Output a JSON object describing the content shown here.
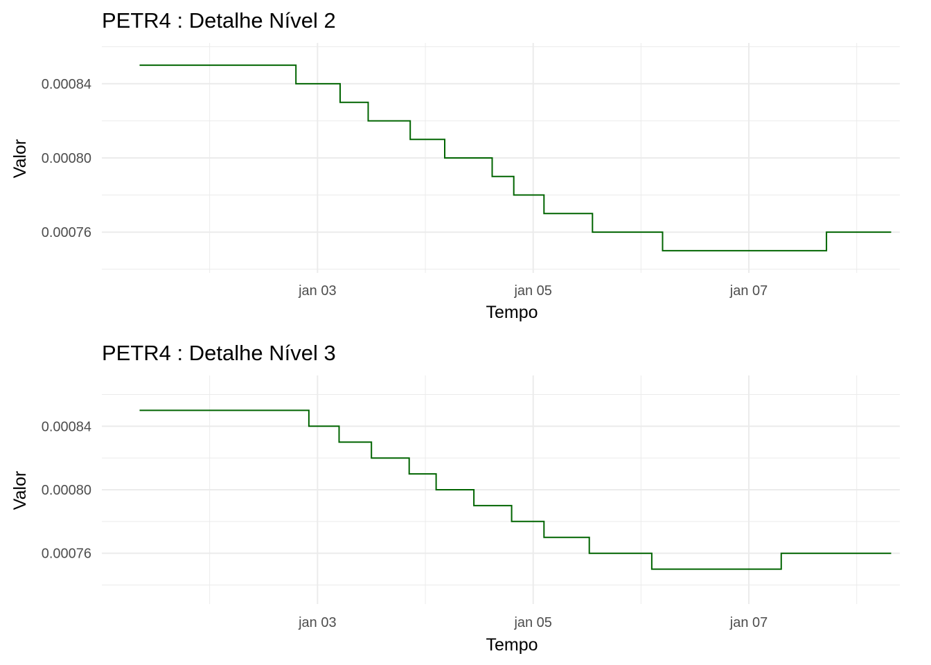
{
  "chart_data": [
    {
      "type": "line",
      "title": "PETR4 : Detalhe Nível 2",
      "xlabel": "Tempo",
      "ylabel": "Valor",
      "x_tick_labels": [
        "jan 03",
        "jan 05",
        "jan 07"
      ],
      "x_ticks_day": [
        3,
        5,
        7
      ],
      "y_tick_labels": [
        "0.00076",
        "0.00080",
        "0.00084"
      ],
      "y_ticks": [
        0.00076,
        0.0008,
        0.00084
      ],
      "xlim_day": [
        1.0,
        8.4
      ],
      "ylim": [
        0.000738,
        0.000862
      ],
      "grid": true,
      "color": "#006400",
      "series": [
        {
          "x_day": [
            1.35,
            1.46,
            1.88,
            2.25,
            2.48,
            2.8,
            2.86,
            3.05,
            3.21,
            3.39,
            3.47,
            3.73,
            3.86,
            4.08,
            4.18,
            4.35,
            4.62,
            4.82,
            4.98,
            5.1,
            5.34,
            5.55,
            5.96,
            6.2,
            6.48,
            6.85,
            7.3,
            7.72,
            8.1,
            8.32
          ],
          "values": [
            0.00085,
            0.00085,
            0.00085,
            0.00085,
            0.00085,
            0.00084,
            0.00084,
            0.00084,
            0.00083,
            0.00083,
            0.00082,
            0.00082,
            0.00081,
            0.00081,
            0.0008,
            0.0008,
            0.00079,
            0.00078,
            0.00078,
            0.00077,
            0.00077,
            0.00076,
            0.00076,
            0.00075,
            0.00075,
            0.00075,
            0.00075,
            0.00076,
            0.00076,
            0.00076
          ]
        }
      ]
    },
    {
      "type": "line",
      "title": "PETR4 : Detalhe Nível 3",
      "xlabel": "Tempo",
      "ylabel": "Valor",
      "x_tick_labels": [
        "jan 03",
        "jan 05",
        "jan 07"
      ],
      "x_ticks_day": [
        3,
        5,
        7
      ],
      "y_tick_labels": [
        "0.00076",
        "0.00080",
        "0.00084"
      ],
      "y_ticks": [
        0.00076,
        0.0008,
        0.00084
      ],
      "xlim_day": [
        1.0,
        8.4
      ],
      "ylim": [
        0.000728,
        0.000872
      ],
      "grid": true,
      "color": "#006400",
      "series": [
        {
          "x_day": [
            1.35,
            1.6,
            2.0,
            2.4,
            2.75,
            2.92,
            3.05,
            3.2,
            3.38,
            3.5,
            3.68,
            3.85,
            3.98,
            4.1,
            4.25,
            4.45,
            4.62,
            4.8,
            4.98,
            5.1,
            5.3,
            5.52,
            5.8,
            6.1,
            6.4,
            6.7,
            7.0,
            7.3,
            7.7,
            8.0,
            8.2,
            8.32
          ],
          "values": [
            0.00085,
            0.00085,
            0.00085,
            0.00085,
            0.00085,
            0.00084,
            0.00084,
            0.00083,
            0.00083,
            0.00082,
            0.00082,
            0.00081,
            0.00081,
            0.0008,
            0.0008,
            0.00079,
            0.00079,
            0.00078,
            0.00078,
            0.00077,
            0.00077,
            0.00076,
            0.00076,
            0.00075,
            0.00075,
            0.00075,
            0.00075,
            0.00076,
            0.00076,
            0.00076,
            0.00076,
            0.00076
          ]
        }
      ]
    }
  ]
}
